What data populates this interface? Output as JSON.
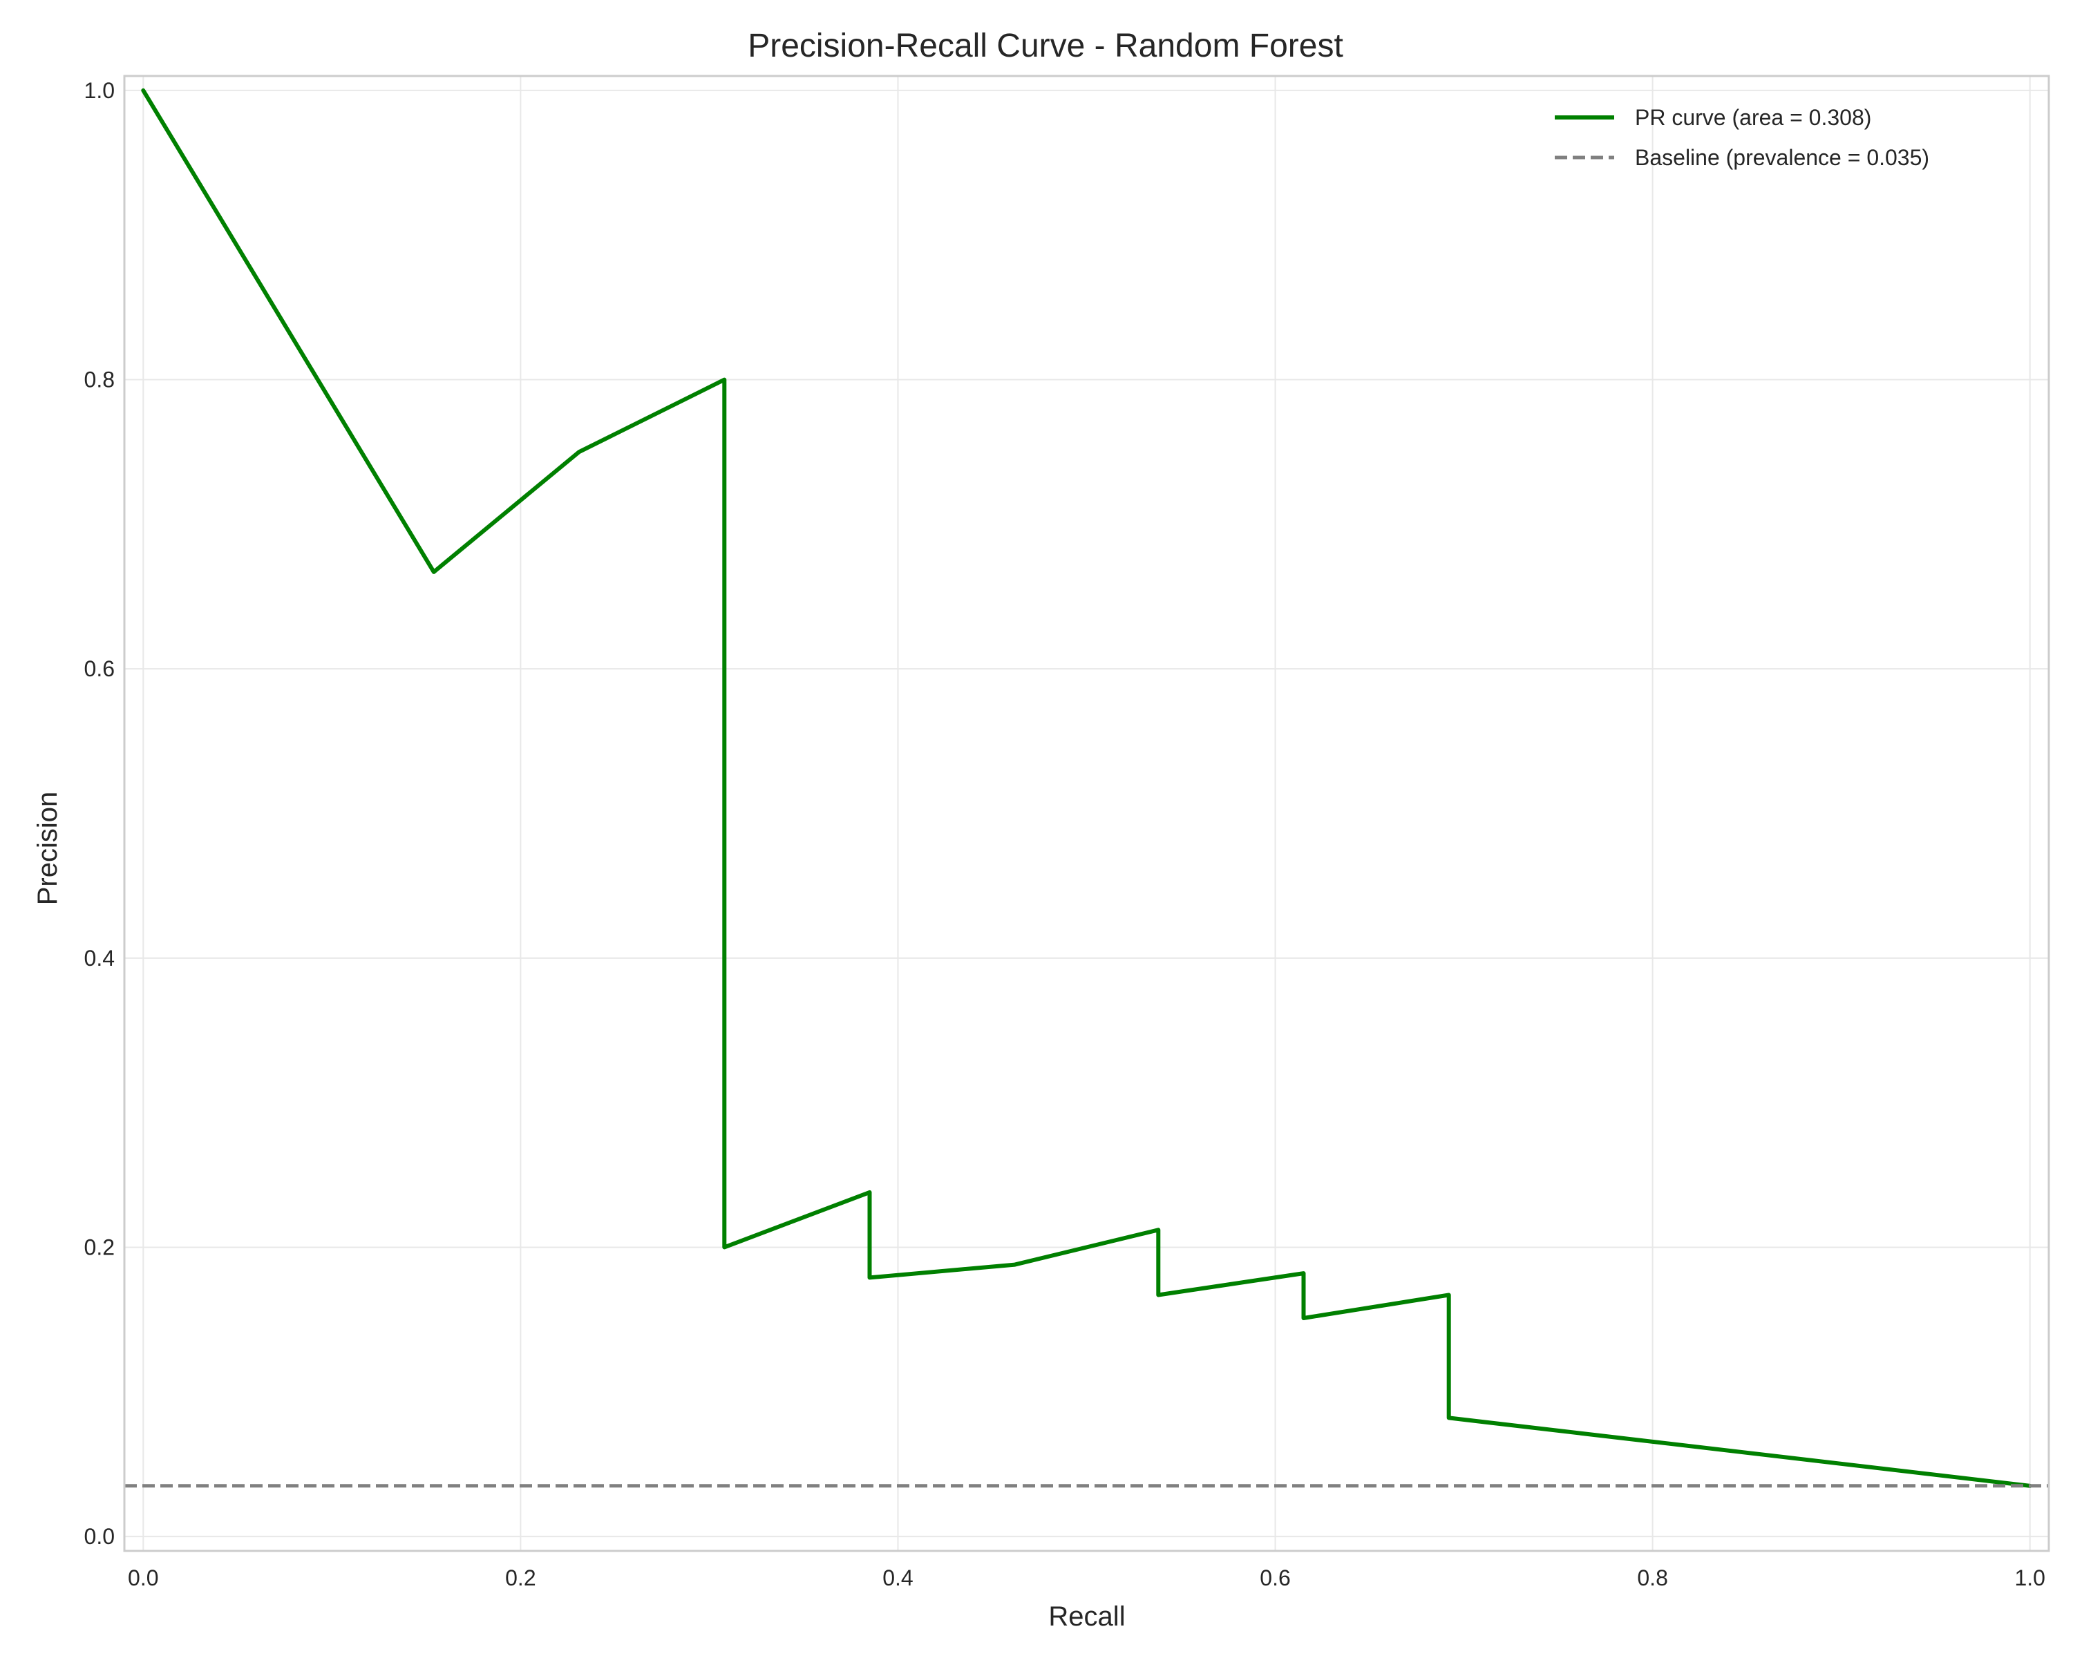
{
  "chart_data": {
    "type": "line",
    "title": "Precision-Recall Curve - Random Forest",
    "xlabel": "Recall",
    "ylabel": "Precision",
    "xlim": [
      -0.01,
      1.01
    ],
    "ylim": [
      -0.01,
      1.01
    ],
    "xticks": [
      0.0,
      0.2,
      0.4,
      0.6,
      0.8,
      1.0
    ],
    "xtick_labels": [
      "0.0",
      "0.2",
      "0.4",
      "0.6",
      "0.8",
      "1.0"
    ],
    "yticks": [
      0.0,
      0.2,
      0.4,
      0.6,
      0.8,
      1.0
    ],
    "ytick_labels": [
      "0.0",
      "0.2",
      "0.4",
      "0.6",
      "0.8",
      "1.0"
    ],
    "grid": true,
    "legend_position": "top-right",
    "series": [
      {
        "name": "PR curve (area = 0.308)",
        "color": "#008000",
        "style": "solid",
        "x": [
          0.0,
          0.154,
          0.231,
          0.308,
          0.308,
          0.385,
          0.385,
          0.462,
          0.538,
          0.538,
          0.615,
          0.615,
          0.692,
          0.692,
          1.0
        ],
        "y": [
          1.0,
          0.667,
          0.75,
          0.8,
          0.2,
          0.238,
          0.179,
          0.188,
          0.212,
          0.167,
          0.182,
          0.151,
          0.167,
          0.082,
          0.035
        ]
      },
      {
        "name": "Baseline (prevalence = 0.035)",
        "color": "#808080",
        "style": "dashed",
        "x": [
          -0.01,
          1.01
        ],
        "y": [
          0.035,
          0.035
        ]
      }
    ]
  }
}
